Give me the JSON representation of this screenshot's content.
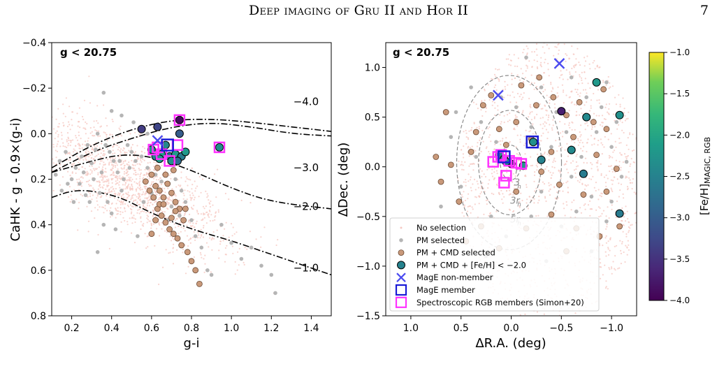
{
  "header": {
    "running_head": "Deep imaging of Gru II and Hor II",
    "page_number": "7"
  },
  "colors": {
    "no_selection": "#f6c9c3",
    "pm_selected": "#b5b5b5",
    "pm_cmd_selected": "#c9997a",
    "mage_nonmember": "#4b4bf0",
    "mage_member": "#1a1ad6",
    "spectroscopic": "#ff33ff",
    "track": "#000000",
    "ellipse": "#8c8c8c"
  },
  "chart_data": [
    {
      "type": "scatter",
      "title": "g < 20.75",
      "xlabel": "g-i",
      "ylabel": "CaHK - g - 0.9×(g-i)",
      "xlim": [
        0.1,
        1.5
      ],
      "ylim": [
        0.8,
        -0.4
      ],
      "y_inverted": true,
      "xticks": [
        "0.2",
        "0.4",
        "0.6",
        "0.8",
        "1.0",
        "1.2",
        "1.4"
      ],
      "yticks": [
        "−0.4",
        "−0.2",
        "0.0",
        "0.2",
        "0.4",
        "0.6",
        "0.8"
      ],
      "grid": false,
      "metallicity_tracks": [
        {
          "label": "−4.0",
          "x": [
            0.1,
            0.3,
            0.5,
            0.7,
            0.9,
            1.1,
            1.3,
            1.5
          ],
          "y": [
            0.15,
            0.05,
            -0.02,
            -0.06,
            -0.065,
            -0.05,
            -0.03,
            -0.01
          ]
        },
        {
          "label": "−3.0",
          "x": [
            0.1,
            0.3,
            0.5,
            0.7,
            0.9,
            1.1,
            1.3,
            1.5
          ],
          "y": [
            0.17,
            0.08,
            0.02,
            -0.03,
            -0.05,
            -0.03,
            0.0,
            0.01
          ]
        },
        {
          "label": "−2.0",
          "x": [
            0.1,
            0.3,
            0.45,
            0.6,
            0.8,
            1.0,
            1.2,
            1.5
          ],
          "y": [
            0.17,
            0.12,
            0.09,
            0.1,
            0.16,
            0.24,
            0.3,
            0.33
          ]
        },
        {
          "label": "−1.0",
          "x": [
            0.1,
            0.2,
            0.3,
            0.45,
            0.6,
            0.8,
            1.0,
            1.2,
            1.5
          ],
          "y": [
            0.28,
            0.25,
            0.25,
            0.28,
            0.35,
            0.42,
            0.47,
            0.53,
            0.62
          ]
        }
      ],
      "track_labels": [
        {
          "text": "−4.0",
          "x": 1.31,
          "y": -0.14
        },
        {
          "text": "−3.0",
          "x": 1.31,
          "y": 0.15
        },
        {
          "text": "−2.0",
          "x": 1.31,
          "y": 0.32
        },
        {
          "text": "−1.0",
          "x": 1.31,
          "y": 0.59
        }
      ],
      "pm_selected": [
        [
          0.3,
          0.13
        ],
        [
          0.33,
          0.0
        ],
        [
          0.36,
          -0.18
        ],
        [
          0.37,
          0.05
        ],
        [
          0.39,
          0.08
        ],
        [
          0.41,
          0.12
        ],
        [
          0.43,
          0.17
        ],
        [
          0.44,
          0.12
        ],
        [
          0.46,
          0.2
        ],
        [
          0.25,
          0.1
        ],
        [
          0.22,
          0.15
        ],
        [
          0.2,
          0.2
        ],
        [
          0.18,
          0.22
        ],
        [
          0.28,
          0.05
        ],
        [
          0.31,
          0.2
        ],
        [
          0.34,
          0.26
        ],
        [
          0.29,
          0.3
        ],
        [
          0.24,
          0.22
        ],
        [
          0.5,
          0.08
        ],
        [
          0.52,
          0.12
        ],
        [
          0.48,
          0.05
        ],
        [
          0.55,
          0.1
        ],
        [
          0.58,
          0.15
        ],
        [
          0.62,
          0.18
        ],
        [
          0.65,
          0.21
        ],
        [
          0.56,
          0.3
        ],
        [
          0.6,
          0.26
        ],
        [
          0.72,
          0.2
        ],
        [
          0.75,
          0.25
        ],
        [
          0.77,
          0.3
        ],
        [
          0.8,
          0.38
        ],
        [
          0.82,
          0.45
        ],
        [
          0.85,
          0.5
        ],
        [
          0.88,
          0.6
        ],
        [
          0.9,
          0.62
        ],
        [
          0.45,
          0.25
        ],
        [
          0.38,
          0.3
        ],
        [
          0.35,
          0.17
        ],
        [
          0.27,
          0.27
        ],
        [
          0.21,
          0.3
        ],
        [
          0.4,
          0.35
        ],
        [
          0.42,
          0.42
        ],
        [
          0.36,
          0.4
        ],
        [
          0.33,
          0.52
        ],
        [
          0.53,
          0.45
        ],
        [
          0.95,
          0.4
        ],
        [
          1.0,
          0.48
        ],
        [
          1.05,
          0.55
        ],
        [
          1.1,
          0.5
        ],
        [
          1.15,
          0.58
        ],
        [
          1.2,
          0.62
        ],
        [
          1.22,
          0.7
        ],
        [
          0.12,
          0.18
        ],
        [
          0.15,
          0.25
        ],
        [
          0.14,
          0.12
        ],
        [
          0.17,
          0.08
        ],
        [
          0.26,
          0.17
        ],
        [
          0.32,
          0.07
        ],
        [
          0.49,
          0.15
        ],
        [
          0.51,
          -0.05
        ],
        [
          0.45,
          -0.08
        ],
        [
          0.4,
          -0.1
        ],
        [
          0.58,
          0.0
        ],
        [
          0.7,
          0.32
        ],
        [
          0.68,
          0.38
        ],
        [
          0.74,
          0.36
        ]
      ],
      "pm_cmd_selected": [
        [
          0.57,
          0.21
        ],
        [
          0.6,
          0.18
        ],
        [
          0.62,
          0.23
        ],
        [
          0.64,
          0.25
        ],
        [
          0.66,
          0.28
        ],
        [
          0.68,
          0.22
        ],
        [
          0.7,
          0.26
        ],
        [
          0.72,
          0.3
        ],
        [
          0.74,
          0.33
        ],
        [
          0.76,
          0.38
        ],
        [
          0.63,
          0.33
        ],
        [
          0.65,
          0.36
        ],
        [
          0.67,
          0.39
        ],
        [
          0.69,
          0.42
        ],
        [
          0.71,
          0.44
        ],
        [
          0.73,
          0.46
        ],
        [
          0.75,
          0.49
        ],
        [
          0.6,
          0.44
        ],
        [
          0.78,
          0.52
        ],
        [
          0.8,
          0.56
        ],
        [
          0.82,
          0.6
        ],
        [
          0.84,
          0.66
        ],
        [
          0.61,
          0.28
        ],
        [
          0.64,
          0.31
        ],
        [
          0.66,
          0.31
        ],
        [
          0.7,
          0.37
        ],
        [
          0.72,
          0.34
        ],
        [
          0.77,
          0.33
        ],
        [
          0.62,
          0.38
        ],
        [
          0.59,
          0.25
        ],
        [
          0.63,
          0.15
        ],
        [
          0.67,
          0.18
        ],
        [
          0.71,
          0.16
        ]
      ],
      "pm_cmd_feh": [
        {
          "x": 0.55,
          "y": -0.02,
          "feh": -3.4
        },
        {
          "x": 0.63,
          "y": -0.03,
          "feh": -3.3
        },
        {
          "x": 0.74,
          "y": 0.0,
          "feh": -3.0
        },
        {
          "x": 0.74,
          "y": -0.06,
          "feh": -3.9
        },
        {
          "x": 0.6,
          "y": 0.07,
          "feh": -2.3
        },
        {
          "x": 0.62,
          "y": 0.1,
          "feh": -2.5
        },
        {
          "x": 0.65,
          "y": 0.09,
          "feh": -2.1
        },
        {
          "x": 0.67,
          "y": 0.05,
          "feh": -2.4
        },
        {
          "x": 0.69,
          "y": 0.1,
          "feh": -2.7
        },
        {
          "x": 0.7,
          "y": 0.12,
          "feh": -2.3
        },
        {
          "x": 0.72,
          "y": 0.09,
          "feh": -2.2
        },
        {
          "x": 0.75,
          "y": 0.1,
          "feh": -2.6
        },
        {
          "x": 0.77,
          "y": 0.08,
          "feh": -2.2
        },
        {
          "x": 0.94,
          "y": 0.06,
          "feh": -2.3
        },
        {
          "x": 0.64,
          "y": 0.11,
          "feh": -2.2
        },
        {
          "x": 0.73,
          "y": 0.12,
          "feh": -2.8
        }
      ],
      "mage_nonmember": [
        [
          0.63,
          0.03
        ]
      ],
      "mage_member": [
        [
          0.68,
          0.05
        ]
      ],
      "spectroscopic": [
        [
          0.74,
          -0.06
        ],
        [
          0.63,
          0.06
        ],
        [
          0.69,
          0.12
        ],
        [
          0.73,
          0.05
        ],
        [
          0.94,
          0.06
        ],
        [
          0.61,
          0.07
        ],
        [
          0.65,
          0.09
        ]
      ]
    },
    {
      "type": "scatter",
      "title": "g < 20.75",
      "xlabel": "ΔR.A. (deg)",
      "ylabel": "ΔDec. (deg)",
      "xlim": [
        1.25,
        -1.25
      ],
      "ylim": [
        -1.5,
        1.25
      ],
      "x_inverted": true,
      "xticks": [
        "1.0",
        "0.5",
        "0.0",
        "−0.5",
        "−1.0"
      ],
      "yticks": [
        "1.0",
        "0.5",
        "0.0",
        "−0.5",
        "−1.0",
        "−1.5"
      ],
      "grid": false,
      "ellipse_labels": [
        {
          "text": "r",
          "x": -0.04,
          "y": -0.07
        },
        {
          "text": "3",
          "x": -0.03,
          "y": -0.19
        },
        {
          "text": "h",
          "x": -0.06,
          "y": -0.22
        },
        {
          "text": "3r",
          "x": 0.01,
          "y": -0.37
        },
        {
          "text": "h",
          "x": -0.06,
          "y": -0.4
        },
        {
          "text": "5r",
          "x": 0.01,
          "y": -0.56
        },
        {
          "text": "h",
          "x": -0.06,
          "y": -0.59
        }
      ],
      "ellipses_rh": [
        1,
        3,
        5
      ],
      "pm_selected": [
        [
          0.55,
          0.55
        ],
        [
          0.3,
          0.45
        ],
        [
          -0.3,
          0.8
        ],
        [
          -0.6,
          0.9
        ],
        [
          -0.9,
          0.6
        ],
        [
          -1.0,
          0.2
        ],
        [
          -0.8,
          -0.3
        ],
        [
          -0.5,
          -0.6
        ],
        [
          0.2,
          -0.5
        ],
        [
          0.5,
          -0.2
        ],
        [
          0.6,
          0.3
        ],
        [
          -0.2,
          0.4
        ],
        [
          -0.4,
          0.2
        ],
        [
          -0.7,
          0.1
        ],
        [
          -1.1,
          -0.1
        ],
        [
          -0.95,
          -0.55
        ],
        [
          0.1,
          0.7
        ],
        [
          0.4,
          0.8
        ],
        [
          -0.15,
          1.1
        ],
        [
          0.25,
          -0.9
        ],
        [
          -0.3,
          -0.25
        ],
        [
          -0.6,
          -0.1
        ],
        [
          -0.85,
          0.35
        ],
        [
          -1.05,
          0.45
        ],
        [
          0.7,
          -0.4
        ],
        [
          -0.45,
          0.55
        ],
        [
          -0.75,
          0.7
        ],
        [
          -1.15,
          0.05
        ],
        [
          -0.2,
          -0.5
        ],
        [
          0.15,
          0.25
        ],
        [
          -0.55,
          0.35
        ],
        [
          -0.95,
          0.85
        ],
        [
          0.35,
          0.1
        ],
        [
          -0.05,
          0.6
        ],
        [
          -0.65,
          -0.45
        ],
        [
          -1.0,
          -0.35
        ],
        [
          0.05,
          -0.7
        ],
        [
          -0.35,
          -0.95
        ],
        [
          -0.8,
          -0.85
        ]
      ],
      "pm_cmd_selected": [
        [
          0.65,
          0.55
        ],
        [
          0.35,
          0.35
        ],
        [
          0.2,
          0.72
        ],
        [
          -0.1,
          0.82
        ],
        [
          -0.28,
          0.9
        ],
        [
          -0.42,
          0.7
        ],
        [
          -0.68,
          0.65
        ],
        [
          -0.92,
          0.78
        ],
        [
          -0.62,
          0.3
        ],
        [
          -0.85,
          0.12
        ],
        [
          -1.05,
          -0.02
        ],
        [
          -0.95,
          -0.25
        ],
        [
          -0.72,
          -0.28
        ],
        [
          -0.48,
          -0.18
        ],
        [
          -0.3,
          -0.05
        ],
        [
          -0.2,
          0.28
        ],
        [
          -0.05,
          0.45
        ],
        [
          0.12,
          0.38
        ],
        [
          0.4,
          0.15
        ],
        [
          0.6,
          0.02
        ],
        [
          0.52,
          -0.35
        ],
        [
          0.3,
          -0.6
        ],
        [
          0.12,
          -0.82
        ],
        [
          -0.15,
          -0.62
        ],
        [
          -0.4,
          -0.48
        ],
        [
          -0.65,
          -0.62
        ],
        [
          -0.88,
          -0.7
        ],
        [
          -1.08,
          -0.6
        ],
        [
          0.45,
          -0.75
        ],
        [
          -0.25,
          0.62
        ],
        [
          -0.55,
          0.52
        ],
        [
          -0.82,
          0.45
        ],
        [
          0.28,
          0.62
        ],
        [
          0.05,
          0.22
        ],
        [
          -0.05,
          -0.25
        ],
        [
          -0.4,
          0.15
        ],
        [
          0.75,
          0.1
        ],
        [
          0.7,
          -0.15
        ],
        [
          -0.95,
          0.38
        ],
        [
          -0.55,
          -0.85
        ]
      ],
      "pm_cmd_feh": [
        {
          "x": -0.85,
          "y": 0.85,
          "feh": -2.2
        },
        {
          "x": -1.08,
          "y": 0.52,
          "feh": -2.3
        },
        {
          "x": -0.75,
          "y": 0.5,
          "feh": -2.4
        },
        {
          "x": -0.5,
          "y": 0.56,
          "feh": -3.7
        },
        {
          "x": -0.3,
          "y": 0.07,
          "feh": -2.5
        },
        {
          "x": -0.6,
          "y": 0.17,
          "feh": -2.4
        },
        {
          "x": -0.72,
          "y": -0.07,
          "feh": -2.6
        },
        {
          "x": -1.08,
          "y": -0.47,
          "feh": -2.6
        },
        {
          "x": -0.22,
          "y": 0.25,
          "feh": -2.3
        },
        {
          "x": 0.12,
          "y": 0.12,
          "feh": -2.3
        },
        {
          "x": 0.07,
          "y": 0.08,
          "feh": -2.4
        },
        {
          "x": -0.12,
          "y": 0.01,
          "feh": -2.2
        },
        {
          "x": 0.0,
          "y": 0.03,
          "feh": -3.6
        },
        {
          "x": 0.05,
          "y": 0.05,
          "feh": -2.5
        }
      ],
      "mage_nonmember": [
        [
          0.13,
          0.72
        ],
        [
          -0.48,
          1.04
        ]
      ],
      "mage_member": [
        [
          -0.21,
          0.25
        ],
        [
          0.07,
          0.1
        ]
      ],
      "spectroscopic": [
        [
          0.18,
          0.05
        ],
        [
          0.1,
          0.12
        ],
        [
          0.02,
          0.06
        ],
        [
          -0.05,
          0.04
        ],
        [
          -0.1,
          0.03
        ],
        [
          0.05,
          -0.09
        ],
        [
          0.07,
          -0.16
        ],
        [
          0.13,
          0.1
        ]
      ]
    }
  ],
  "colorbar": {
    "label": "[Fe/H]MAGIC, RGB",
    "label_main": "[Fe/H]",
    "label_sub": "MAGIC, RGB",
    "range": [
      -4.0,
      -1.0
    ],
    "ticks": [
      "−1.0",
      "−1.5",
      "−2.0",
      "−2.5",
      "−3.0",
      "−3.5",
      "−4.0"
    ],
    "tick_values": [
      -1.0,
      -1.5,
      -2.0,
      -2.5,
      -3.0,
      -3.5,
      -4.0
    ]
  },
  "legend": {
    "placement": "lower-left",
    "items": [
      {
        "label": "No selection"
      },
      {
        "label": "PM selected"
      },
      {
        "label": "PM + CMD selected"
      },
      {
        "label": "PM + CMD + [Fe/H] < −2.0"
      },
      {
        "label": "MagE non-member"
      },
      {
        "label": "MagE member"
      },
      {
        "label": "Spectroscopic RGB members (Simon+20)"
      }
    ]
  }
}
